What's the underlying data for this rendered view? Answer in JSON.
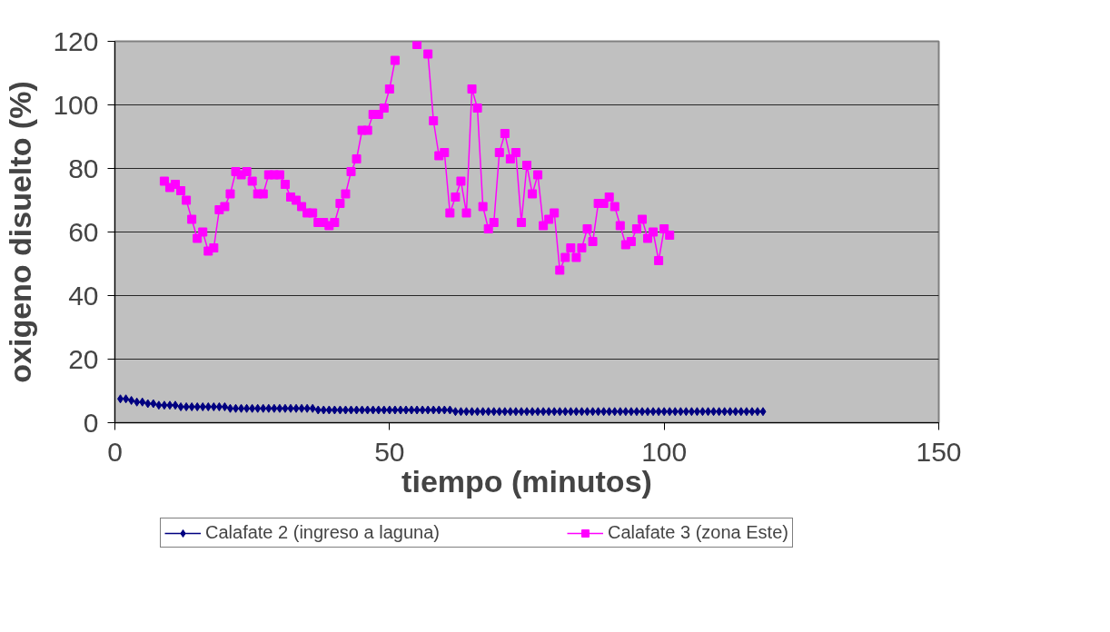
{
  "chart_data": {
    "type": "line",
    "xlabel": "tiempo (minutos)",
    "ylabel": "oxigeno disuelto (%)",
    "xlim": [
      0,
      150
    ],
    "xticks": [
      0,
      50,
      100,
      150
    ],
    "ylim": [
      0,
      120
    ],
    "yticks": [
      0,
      20,
      40,
      60,
      80,
      100,
      120
    ],
    "grid": "y",
    "legend": "bottom",
    "line_style": "solid",
    "series": [
      {
        "name": "Calafate 2 (ingreso a laguna)",
        "color": "#000080",
        "marker": "diamond",
        "x": [
          1,
          2,
          3,
          4,
          5,
          6,
          7,
          8,
          9,
          10,
          11,
          12,
          13,
          14,
          15,
          16,
          17,
          18,
          19,
          20,
          21,
          22,
          23,
          24,
          25,
          26,
          27,
          28,
          29,
          30,
          31,
          32,
          33,
          34,
          35,
          36,
          37,
          38,
          39,
          40,
          41,
          42,
          43,
          44,
          45,
          46,
          47,
          48,
          49,
          50,
          51,
          52,
          53,
          54,
          55,
          56,
          57,
          58,
          59,
          60,
          61,
          62,
          63,
          64,
          65,
          66,
          67,
          68,
          69,
          70,
          71,
          72,
          73,
          74,
          75,
          76,
          77,
          78,
          79,
          80,
          81,
          82,
          83,
          84,
          85,
          86,
          87,
          88,
          89,
          90,
          91,
          92,
          93,
          94,
          95,
          96,
          97,
          98,
          99,
          100,
          101,
          102,
          103,
          104,
          105,
          106,
          107,
          108,
          109,
          110,
          111,
          112,
          113,
          114,
          115,
          116,
          117,
          118
        ],
        "values": [
          7.5,
          7.5,
          7,
          6.5,
          6.5,
          6,
          6,
          5.5,
          5.5,
          5.5,
          5.5,
          5,
          5,
          5,
          5,
          5,
          5,
          5,
          5,
          5,
          4.5,
          4.5,
          4.5,
          4.5,
          4.5,
          4.5,
          4.5,
          4.5,
          4.5,
          4.5,
          4.5,
          4.5,
          4.5,
          4.5,
          4.5,
          4.5,
          4,
          4,
          4,
          4,
          4,
          4,
          4,
          4,
          4,
          4,
          4,
          4,
          4,
          4,
          4,
          4,
          4,
          4,
          4,
          4,
          4,
          4,
          4,
          4,
          4,
          3.5,
          3.5,
          3.5,
          3.5,
          3.5,
          3.5,
          3.5,
          3.5,
          3.5,
          3.5,
          3.5,
          3.5,
          3.5,
          3.5,
          3.5,
          3.5,
          3.5,
          3.5,
          3.5,
          3.5,
          3.5,
          3.5,
          3.5,
          3.5,
          3.5,
          3.5,
          3.5,
          3.5,
          3.5,
          3.5,
          3.5,
          3.5,
          3.5,
          3.5,
          3.5,
          3.5,
          3.5,
          3.5,
          3.5,
          3.5,
          3.5,
          3.5,
          3.5,
          3.5,
          3.5,
          3.5,
          3.5,
          3.5,
          3.5,
          3.5,
          3.5,
          3.5,
          3.5,
          3.5,
          3.5,
          3.5,
          3.5
        ]
      },
      {
        "name": "Calafate 3 (zona Este)",
        "color": "#ff00ff",
        "marker": "square",
        "x": [
          9,
          10,
          11,
          12,
          13,
          14,
          15,
          16,
          17,
          18,
          19,
          20,
          21,
          22,
          23,
          24,
          25,
          26,
          27,
          28,
          29,
          30,
          31,
          32,
          33,
          34,
          35,
          36,
          37,
          38,
          39,
          40,
          41,
          42,
          43,
          44,
          45,
          46,
          47,
          48,
          49,
          50,
          51,
          52,
          53,
          54,
          55,
          56,
          57,
          58,
          59,
          60,
          61,
          62,
          63,
          64,
          65,
          66,
          67,
          68,
          69,
          70,
          71,
          72,
          73,
          74,
          75,
          76,
          77,
          78,
          79,
          80,
          81,
          82,
          83,
          84,
          85,
          86,
          87,
          88,
          89,
          90,
          91,
          92,
          93,
          94,
          95,
          96,
          97,
          98,
          99,
          100,
          101
        ],
        "values": [
          76,
          74,
          75,
          73,
          70,
          64,
          58,
          60,
          54,
          55,
          67,
          68,
          72,
          79,
          78,
          79,
          76,
          72,
          72,
          78,
          78,
          78,
          75,
          71,
          70,
          68,
          66,
          66,
          63,
          63,
          62,
          63,
          69,
          72,
          79,
          83,
          92,
          92,
          97,
          97,
          99,
          105,
          114,
          null,
          null,
          null,
          119,
          null,
          116,
          95,
          84,
          85,
          66,
          71,
          76,
          66,
          105,
          99,
          68,
          61,
          63,
          85,
          91,
          83,
          85,
          63,
          81,
          72,
          78,
          62,
          64,
          66,
          48,
          52,
          55,
          52,
          55,
          61,
          57,
          69,
          69,
          71,
          68,
          62,
          56,
          57,
          61,
          64,
          58,
          60,
          51,
          61,
          59
        ]
      }
    ]
  }
}
